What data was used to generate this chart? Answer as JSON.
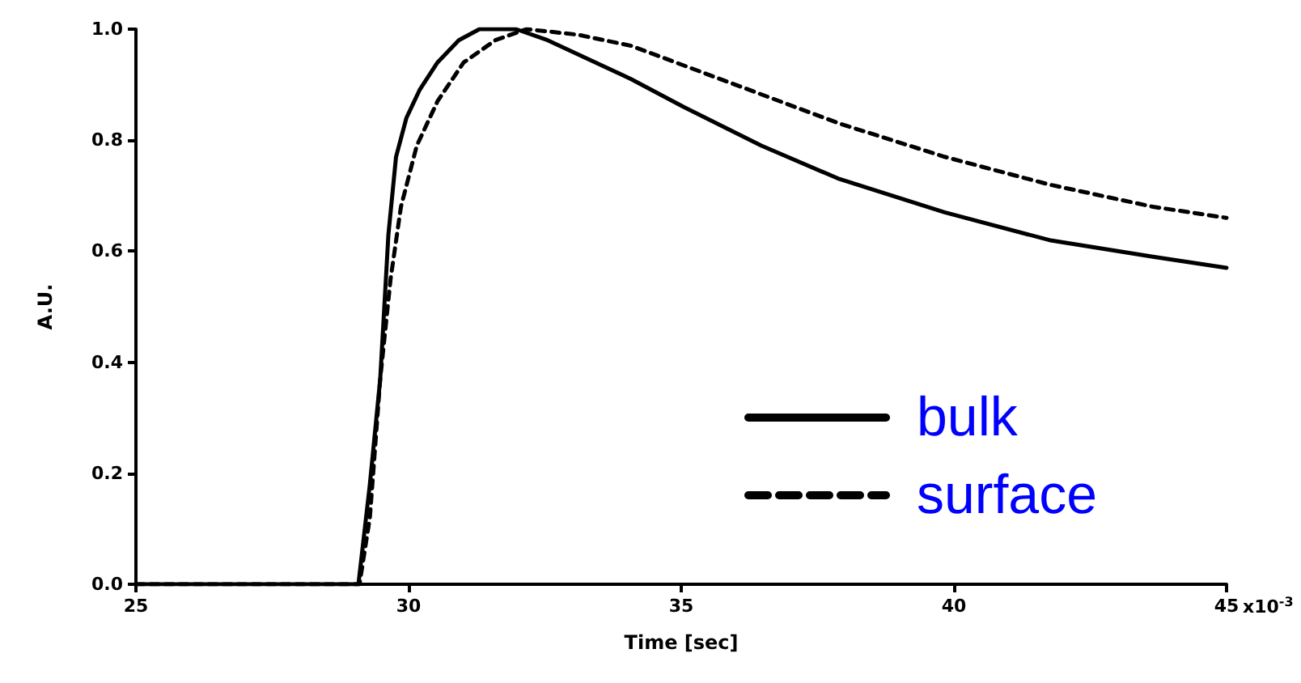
{
  "chart_data": {
    "type": "line",
    "xlabel": "Time [sec]",
    "ylabel": "A.U.",
    "xlim": [
      25,
      45
    ],
    "xticks": [
      25,
      30,
      35,
      40,
      45
    ],
    "annotations": [
      "x10$^{-3}$"
    ],
    "ylim": [
      0,
      1.0
    ],
    "yticks": [
      {
        "value": 0,
        "label": "0.0"
      },
      {
        "value": 0.2,
        "label": "0.2"
      },
      {
        "value": 0.4,
        "label": "0.4"
      },
      {
        "value": 0.6,
        "label": "0.6"
      },
      {
        "value": 0.8,
        "label": "0.8"
      },
      {
        "value": 1.0,
        "label": "1.0"
      }
    ],
    "grid": false,
    "legend": "bottom right",
    "marker": "none",
    "series": [
      {
        "name": "bulk",
        "color": "#000000",
        "line_style": "solid",
        "x": [
          25,
          27,
          29.08,
          29.29,
          29.48,
          29.63,
          29.77,
          29.96,
          30.2,
          30.53,
          30.92,
          31.3,
          31.97,
          32.55,
          34.08,
          35.04,
          36.47,
          37.9,
          39.83,
          41.75,
          43.65,
          45
        ],
        "values": [
          0,
          0,
          0,
          0.18,
          0.37,
          0.63,
          0.77,
          0.84,
          0.89,
          0.94,
          0.98,
          1.0,
          1.0,
          0.98,
          0.91,
          0.86,
          0.79,
          0.73,
          0.67,
          0.62,
          0.59,
          0.57
        ]
      },
      {
        "name": "surface",
        "color": "#000000",
        "line_style": "dashed",
        "x": [
          25,
          27,
          29.1,
          29.29,
          29.48,
          29.67,
          29.86,
          30.15,
          30.53,
          31.01,
          31.59,
          32.16,
          33.1,
          34.08,
          35.99,
          37.9,
          39.83,
          41.75,
          43.65,
          45
        ],
        "values": [
          0,
          0,
          0,
          0.12,
          0.37,
          0.55,
          0.68,
          0.79,
          0.87,
          0.94,
          0.98,
          1.0,
          0.99,
          0.97,
          0.9,
          0.83,
          0.77,
          0.72,
          0.68,
          0.66
        ]
      }
    ]
  }
}
